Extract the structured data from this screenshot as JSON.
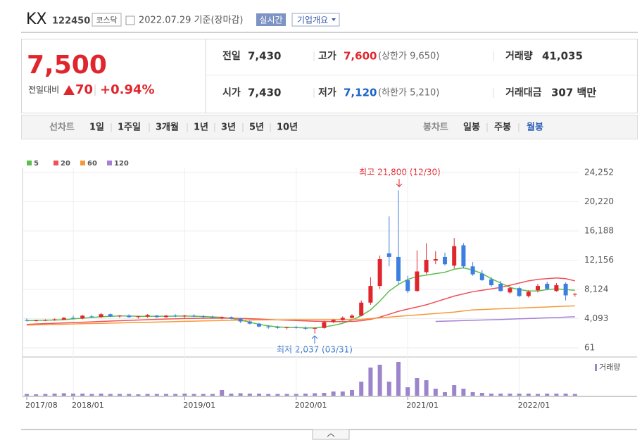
{
  "header": {
    "name": "KX",
    "code": "122450",
    "market": "코스닥",
    "date": "2022.07.29 기준(장마감)",
    "realtime": "실시간",
    "company": "기업개요"
  },
  "quote": {
    "price": "7,500",
    "change_label": "전일대비",
    "change": "70",
    "change_pct": "+0.94%",
    "prev_label": "전일",
    "prev": "7,430",
    "high_label": "고가",
    "high": "7,600",
    "upper_limit": "(상한가 9,650)",
    "volume_label": "거래량",
    "volume": "41,035",
    "open_label": "시가",
    "open": "7,430",
    "low_label": "저가",
    "low": "7,120",
    "lower_limit": "(하한가 5,210)",
    "amount_label": "거래대금",
    "amount": "307 백만"
  },
  "tabs": {
    "line_label": "선차트",
    "line_items": [
      "1일",
      "1주일",
      "3개월",
      "1년",
      "3년",
      "5년",
      "10년"
    ],
    "candle_label": "봉차트",
    "candle_items": [
      "일봉",
      "주봉",
      "월봉"
    ]
  },
  "chart_data": {
    "type": "candlestick",
    "categories": [
      "2017/08",
      null,
      null,
      null,
      null,
      "2018/01",
      null,
      null,
      null,
      null,
      null,
      null,
      null,
      null,
      null,
      null,
      null,
      "2019/01",
      null,
      null,
      null,
      null,
      null,
      null,
      null,
      null,
      null,
      null,
      null,
      "2020/01",
      null,
      null,
      null,
      null,
      null,
      null,
      null,
      null,
      null,
      null,
      null,
      "2021/01",
      null,
      null,
      null,
      null,
      null,
      null,
      null,
      null,
      null,
      null,
      null,
      "2022/01",
      null,
      null,
      null,
      null,
      null,
      null
    ],
    "ohlc": [
      [
        3900,
        4100,
        3700,
        3800
      ],
      [
        3800,
        3950,
        3700,
        3850
      ],
      [
        3850,
        4000,
        3750,
        3900
      ],
      [
        3900,
        4100,
        3800,
        4000
      ],
      [
        3950,
        4300,
        3900,
        4200
      ],
      [
        4200,
        4500,
        4000,
        4100
      ],
      [
        4100,
        4600,
        4000,
        4500
      ],
      [
        4400,
        4600,
        4200,
        4300
      ],
      [
        4300,
        4900,
        4200,
        4700
      ],
      [
        4700,
        4800,
        4300,
        4400
      ],
      [
        4400,
        4600,
        4200,
        4500
      ],
      [
        4500,
        4700,
        4200,
        4300
      ],
      [
        4300,
        4500,
        4100,
        4400
      ],
      [
        4400,
        4700,
        4200,
        4600
      ],
      [
        4500,
        4600,
        4200,
        4300
      ],
      [
        4300,
        4600,
        4200,
        4500
      ],
      [
        4500,
        4700,
        4300,
        4400
      ],
      [
        4400,
        4600,
        4200,
        4500
      ],
      [
        4500,
        4700,
        4300,
        4400
      ],
      [
        4400,
        4600,
        4200,
        4300
      ],
      [
        4300,
        4500,
        4100,
        4200
      ],
      [
        4200,
        4400,
        4000,
        4300
      ],
      [
        4300,
        4400,
        4000,
        4100
      ],
      [
        4100,
        4200,
        3500,
        3700
      ],
      [
        3700,
        3800,
        3300,
        3400
      ],
      [
        3400,
        3500,
        2900,
        3000
      ],
      [
        3000,
        3200,
        2700,
        2900
      ],
      [
        2900,
        3100,
        2700,
        2800
      ],
      [
        2800,
        3000,
        2600,
        2900
      ],
      [
        2900,
        3100,
        2700,
        2800
      ],
      [
        2800,
        3000,
        2500,
        2700
      ],
      [
        2700,
        2900,
        2037,
        2800
      ],
      [
        2800,
        3800,
        2700,
        3600
      ],
      [
        3600,
        4000,
        3500,
        3900
      ],
      [
        3900,
        4400,
        3800,
        4200
      ],
      [
        4200,
        4700,
        4100,
        4500
      ],
      [
        4500,
        6600,
        4400,
        6300
      ],
      [
        6300,
        9800,
        6000,
        8600
      ],
      [
        8600,
        12800,
        8200,
        12300
      ],
      [
        13100,
        18200,
        11300,
        12600
      ],
      [
        12600,
        21800,
        8800,
        9300
      ],
      [
        9400,
        10000,
        7600,
        7900
      ],
      [
        7900,
        13500,
        7800,
        10600
      ],
      [
        10500,
        14500,
        10200,
        12200
      ],
      [
        12100,
        13400,
        11600,
        12300
      ],
      [
        12600,
        13200,
        11400,
        11600
      ],
      [
        11400,
        15200,
        11000,
        14100
      ],
      [
        14200,
        14500,
        11000,
        11300
      ],
      [
        11300,
        11900,
        10000,
        10200
      ],
      [
        10300,
        10800,
        9300,
        9400
      ],
      [
        9500,
        9800,
        8500,
        8700
      ],
      [
        8900,
        9300,
        7800,
        7900
      ],
      [
        7700,
        8500,
        7500,
        8300
      ],
      [
        8300,
        8500,
        7100,
        7200
      ],
      [
        7200,
        8000,
        7000,
        7800
      ],
      [
        8000,
        8900,
        7700,
        8600
      ],
      [
        8900,
        9200,
        8000,
        8200
      ],
      [
        7900,
        9000,
        7800,
        8700
      ],
      [
        8900,
        9100,
        6600,
        7300
      ],
      [
        7430,
        7600,
        7120,
        7500
      ]
    ],
    "volume": [
      250,
      200,
      250,
      300,
      350,
      300,
      300,
      250,
      300,
      250,
      250,
      250,
      200,
      250,
      250,
      250,
      250,
      300,
      250,
      250,
      250,
      800,
      300,
      350,
      300,
      300,
      250,
      250,
      250,
      250,
      300,
      350,
      400,
      600,
      600,
      800,
      2000,
      4000,
      4400,
      2000,
      4800,
      1200,
      2500,
      2200,
      1000,
      500,
      1500,
      1000,
      500,
      400,
      300,
      300,
      300,
      300,
      300,
      250,
      300,
      300,
      300,
      250
    ],
    "volume_label": "거래량",
    "series": [
      {
        "name": "5",
        "color": "#5cbf4b",
        "values": [
          3800,
          3850,
          3870,
          3900,
          3950,
          4050,
          4150,
          4250,
          4350,
          4400,
          4450,
          4450,
          4400,
          4400,
          4420,
          4420,
          4430,
          4450,
          4420,
          4380,
          4330,
          4280,
          4120,
          3900,
          3600,
          3300,
          3100,
          2950,
          2880,
          2850,
          2820,
          2800,
          2950,
          3150,
          3450,
          3900,
          4500,
          5300,
          6500,
          7900,
          8800,
          9500,
          9900,
          10100,
          10300,
          10500,
          10900,
          11100,
          10800,
          10300,
          9600,
          9000,
          8400,
          8100,
          7900,
          7900,
          8100,
          8200,
          8100,
          8000
        ]
      },
      {
        "name": "20",
        "color": "#f0505a",
        "values": [
          3300,
          3350,
          3400,
          3450,
          3500,
          3550,
          3600,
          3650,
          3700,
          3750,
          3800,
          3850,
          3900,
          3950,
          4000,
          4030,
          4060,
          4100,
          4120,
          4140,
          4150,
          4150,
          4150,
          4120,
          4080,
          4030,
          3980,
          3930,
          3880,
          3830,
          3780,
          3730,
          3700,
          3680,
          3680,
          3700,
          3800,
          4000,
          4300,
          4700,
          5100,
          5400,
          5700,
          6000,
          6400,
          6800,
          7200,
          7500,
          7800,
          8000,
          8200,
          8400,
          8700,
          9000,
          9300,
          9500,
          9600,
          9700,
          9600,
          9300
        ]
      },
      {
        "name": "60",
        "color": "#f59a3a",
        "values": [
          3200,
          3230,
          3260,
          3290,
          3320,
          3350,
          3380,
          3410,
          3440,
          3470,
          3500,
          3530,
          3560,
          3590,
          3620,
          3650,
          3680,
          3710,
          3740,
          3770,
          3800,
          3830,
          3860,
          3880,
          3900,
          3910,
          3920,
          3930,
          3940,
          3950,
          3950,
          3950,
          3950,
          3960,
          3970,
          3980,
          4000,
          4100,
          4200,
          4300,
          4400,
          4500,
          4600,
          4700,
          4800,
          4900,
          5000,
          5150,
          5300,
          5350,
          5400,
          5450,
          5500,
          5550,
          5600,
          5650,
          5700,
          5750,
          5800,
          5850
        ]
      },
      {
        "name": "120",
        "color": "#a67fd6",
        "values": [
          null,
          null,
          null,
          null,
          null,
          null,
          null,
          null,
          null,
          null,
          null,
          null,
          null,
          null,
          null,
          null,
          null,
          null,
          null,
          null,
          null,
          null,
          null,
          null,
          null,
          null,
          null,
          null,
          null,
          null,
          null,
          null,
          null,
          null,
          null,
          null,
          null,
          null,
          null,
          null,
          null,
          null,
          null,
          null,
          3700,
          3740,
          3780,
          3820,
          3860,
          3900,
          3940,
          3980,
          4020,
          4060,
          4100,
          4150,
          4200,
          4250,
          4300,
          4350
        ]
      }
    ],
    "up_color": "#e0262d",
    "down_color": "#3d7fe0",
    "volume_color": "#9c85cb",
    "ylim": [
      61,
      24252
    ],
    "yticks": [
      61,
      {
        "value": 4093,
        "label": "4,093"
      },
      {
        "value": 8124,
        "label": "8,124"
      },
      {
        "value": 12156,
        "label": "12,156"
      },
      {
        "value": 16188,
        "label": "16,188"
      },
      {
        "value": 20220,
        "label": "20,220"
      },
      {
        "value": 24252,
        "label": "24,252"
      }
    ],
    "grid": true,
    "annotations": [
      {
        "text": "최고 21,800 (12/30)",
        "color": "#e0262d"
      },
      {
        "text": "최저 2,037 (03/31)",
        "color": "#2f72c9"
      }
    ]
  }
}
